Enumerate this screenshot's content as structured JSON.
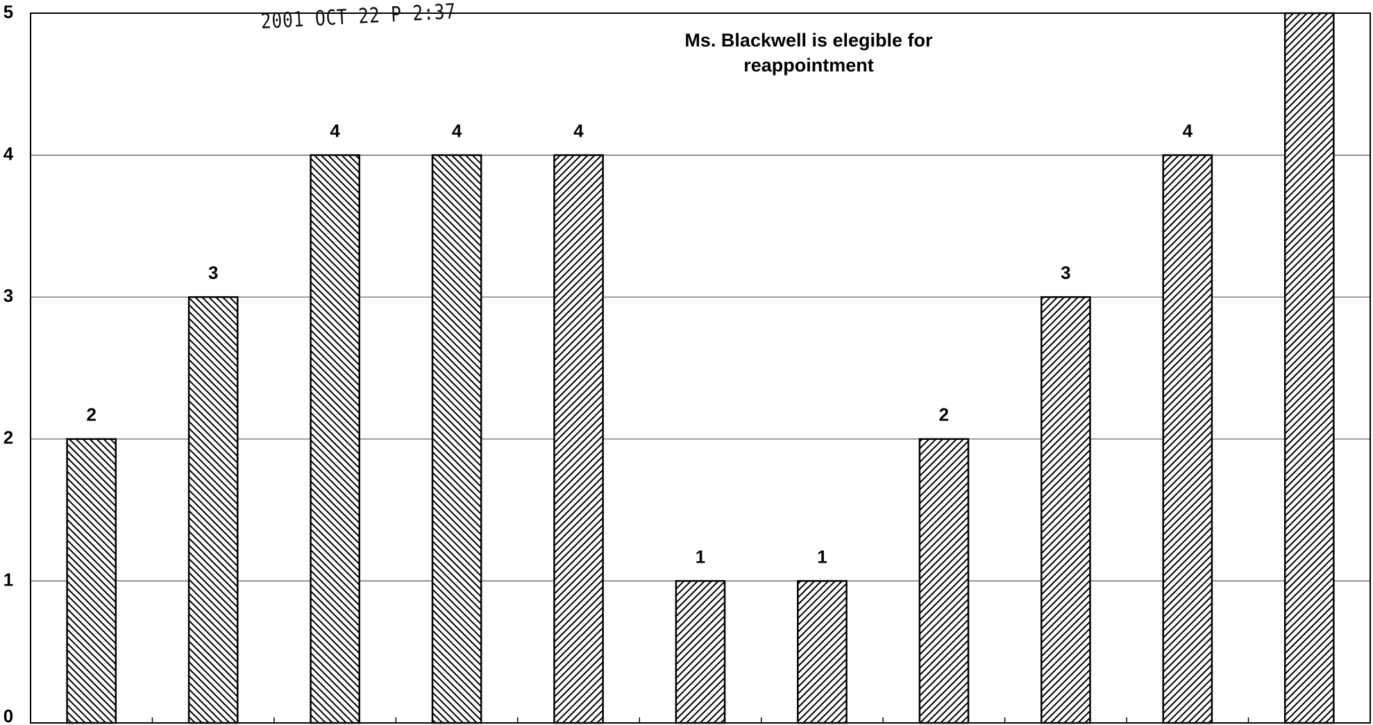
{
  "chart_data": {
    "type": "bar",
    "title": "Ms. Blackwell is elegible for reappointment",
    "annotations": [
      "2001 OCT 22 P 2:37"
    ],
    "categories": [
      null,
      null,
      null,
      null,
      null,
      null,
      null,
      null,
      null,
      null,
      null
    ],
    "values": [
      2,
      3,
      4,
      4,
      4,
      1,
      1,
      2,
      3,
      4,
      5
    ],
    "value_labels": [
      "2",
      "3",
      "4",
      "4",
      "4",
      "1",
      "1",
      "2",
      "3",
      "4",
      null
    ],
    "hatch": [
      "down",
      "down",
      "down",
      "down",
      "up",
      "up",
      "up",
      "up",
      "up",
      "up",
      "up"
    ],
    "color": "#000000",
    "ylim": [
      0,
      5
    ],
    "yticks": [
      0,
      1,
      2,
      3,
      4,
      5
    ],
    "grid": true
  }
}
